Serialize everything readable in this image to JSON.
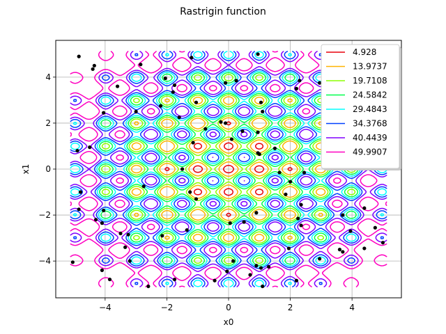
{
  "chart_data": {
    "type": "contour",
    "title": "Rastrigin function",
    "xlabel": "x0",
    "ylabel": "x1",
    "xlim": [
      -5.6,
      5.6
    ],
    "ylim": [
      -5.6,
      5.6
    ],
    "xticks": [
      -4,
      -2,
      0,
      2,
      4
    ],
    "yticks": [
      -4,
      -2,
      0,
      2,
      4
    ],
    "xtick_labels": [
      "−4",
      "−2",
      "0",
      "2",
      "4"
    ],
    "ytick_labels": [
      "−4",
      "−2",
      "0",
      "2",
      "4"
    ],
    "grid": true,
    "legend_position": "top-right",
    "function_domain": [
      -5.12,
      5.12
    ],
    "levels": [
      {
        "label": "4.928",
        "value": 4.928,
        "color": "#e8000b"
      },
      {
        "label": "13.9737",
        "value": 13.9737,
        "color": "#ffb300"
      },
      {
        "label": "19.7108",
        "value": 19.7108,
        "color": "#8cff00"
      },
      {
        "label": "24.5842",
        "value": 24.5842,
        "color": "#00ff4d"
      },
      {
        "label": "29.4843",
        "value": 29.4843,
        "color": "#00ffff"
      },
      {
        "label": "34.3768",
        "value": 34.3768,
        "color": "#0040ff"
      },
      {
        "label": "40.4439",
        "value": 40.4439,
        "color": "#8000ff"
      },
      {
        "label": "49.9907",
        "value": 49.9907,
        "color": "#ff00c0"
      }
    ],
    "points": [
      [
        -4.85,
        4.9
      ],
      [
        -4.4,
        4.35
      ],
      [
        -4.35,
        4.5
      ],
      [
        -2.85,
        4.55
      ],
      [
        -2.05,
        3.95
      ],
      [
        -1.75,
        3.65
      ],
      [
        -1.2,
        4.85
      ],
      [
        -0.1,
        3.75
      ],
      [
        0.25,
        3.85
      ],
      [
        0.95,
        5.0
      ],
      [
        1.05,
        2.9
      ],
      [
        2.2,
        3.5
      ],
      [
        2.3,
        3.85
      ],
      [
        2.95,
        3.75
      ],
      [
        -3.6,
        3.6
      ],
      [
        -4.05,
        2.45
      ],
      [
        -3.0,
        2.5
      ],
      [
        -2.2,
        2.75
      ],
      [
        -1.8,
        3.35
      ],
      [
        -1.6,
        2.25
      ],
      [
        -1.05,
        2.9
      ],
      [
        -0.75,
        1.75
      ],
      [
        -0.25,
        2.05
      ],
      [
        -0.1,
        2.0
      ],
      [
        0.45,
        1.65
      ],
      [
        0.95,
        1.6
      ],
      [
        1.1,
        2.5
      ],
      [
        -1.15,
        1.15
      ],
      [
        0.1,
        1.3
      ],
      [
        1.5,
        0.9
      ],
      [
        -4.9,
        0.8
      ],
      [
        -4.5,
        0.95
      ],
      [
        0.95,
        0.7
      ],
      [
        1.0,
        0.65
      ],
      [
        -1.5,
        0.0
      ],
      [
        1.65,
        -0.15
      ],
      [
        2.45,
        -0.15
      ],
      [
        2.0,
        -0.55
      ],
      [
        -4.8,
        -1.0
      ],
      [
        -2.75,
        -0.75
      ],
      [
        -1.25,
        -1.0
      ],
      [
        -1.05,
        -1.3
      ],
      [
        1.85,
        -1.1
      ],
      [
        2.35,
        -1.55
      ],
      [
        -4.85,
        -1.75
      ],
      [
        -4.05,
        -1.8
      ],
      [
        -4.3,
        -2.2
      ],
      [
        -4.1,
        -2.35
      ],
      [
        -3.5,
        -2.8
      ],
      [
        -3.25,
        -2.85
      ],
      [
        -2.15,
        -2.9
      ],
      [
        -1.35,
        -2.65
      ],
      [
        0.05,
        -2.35
      ],
      [
        0.5,
        -2.3
      ],
      [
        0.9,
        -1.9
      ],
      [
        2.25,
        -2.15
      ],
      [
        2.35,
        -2.45
      ],
      [
        3.7,
        -2.0
      ],
      [
        3.95,
        -2.7
      ],
      [
        4.4,
        -1.7
      ],
      [
        4.75,
        -2.55
      ],
      [
        -5.05,
        -4.05
      ],
      [
        -4.1,
        -4.4
      ],
      [
        -3.85,
        -4.8
      ],
      [
        -3.35,
        -3.4
      ],
      [
        -3.2,
        -4.0
      ],
      [
        -2.6,
        -5.1
      ],
      [
        -1.75,
        -4.8
      ],
      [
        -0.45,
        -4.85
      ],
      [
        -0.05,
        -4.45
      ],
      [
        0.15,
        -4.0
      ],
      [
        0.7,
        -4.6
      ],
      [
        0.9,
        -4.2
      ],
      [
        1.05,
        -4.3
      ],
      [
        1.1,
        -5.1
      ],
      [
        1.3,
        -4.25
      ],
      [
        1.95,
        -3.45
      ],
      [
        2.2,
        -4.85
      ],
      [
        2.95,
        -3.9
      ],
      [
        3.6,
        -3.5
      ],
      [
        3.7,
        -3.6
      ],
      [
        4.4,
        -3.45
      ],
      [
        5.0,
        -3.2
      ]
    ]
  }
}
